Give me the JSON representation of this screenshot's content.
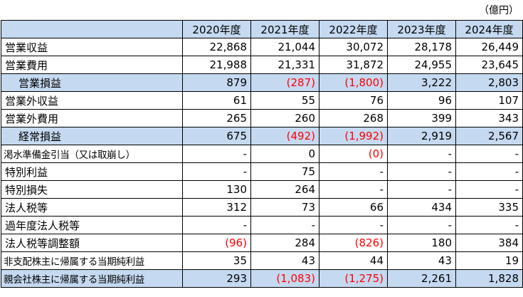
{
  "unit_label": "（億円）",
  "years": [
    "2020年度",
    "2021年度",
    "2022年度",
    "2023年度",
    "2024年度"
  ],
  "rows": [
    {
      "label": "営業収益",
      "values": [
        "22,868",
        "21,044",
        "30,072",
        "28,178",
        "26,449"
      ],
      "neg": [
        false,
        false,
        false,
        false,
        false
      ]
    },
    {
      "label": "営業費用",
      "values": [
        "21,988",
        "21,331",
        "31,872",
        "24,955",
        "23,645"
      ],
      "neg": [
        false,
        false,
        false,
        false,
        false
      ]
    },
    {
      "label": "営業損益",
      "values": [
        "879",
        "(287)",
        "(1,800)",
        "3,222",
        "2,803"
      ],
      "neg": [
        false,
        true,
        true,
        false,
        false
      ]
    },
    {
      "label": "営業外収益",
      "values": [
        "61",
        "55",
        "76",
        "96",
        "107"
      ],
      "neg": [
        false,
        false,
        false,
        false,
        false
      ]
    },
    {
      "label": "営業外費用",
      "values": [
        "265",
        "260",
        "268",
        "399",
        "343"
      ],
      "neg": [
        false,
        false,
        false,
        false,
        false
      ]
    },
    {
      "label": "経常損益",
      "values": [
        "675",
        "(492)",
        "(1,992)",
        "2,919",
        "2,567"
      ],
      "neg": [
        false,
        true,
        true,
        false,
        false
      ]
    },
    {
      "label": "渇水準備金引当（又は取崩し）",
      "values": [
        "-",
        "0",
        "(0)",
        "-",
        "-"
      ],
      "neg": [
        false,
        false,
        true,
        false,
        false
      ]
    },
    {
      "label": "特別利益",
      "values": [
        "-",
        "75",
        "-",
        "-",
        "-"
      ],
      "neg": [
        false,
        false,
        false,
        false,
        false
      ]
    },
    {
      "label": "特別損失",
      "values": [
        "130",
        "264",
        "-",
        "-",
        "-"
      ],
      "neg": [
        false,
        false,
        false,
        false,
        false
      ]
    },
    {
      "label": "法人税等",
      "values": [
        "312",
        "73",
        "66",
        "434",
        "335"
      ],
      "neg": [
        false,
        false,
        false,
        false,
        false
      ]
    },
    {
      "label": "過年度法人税等",
      "values": [
        "-",
        "-",
        "-",
        "-",
        "-"
      ],
      "neg": [
        false,
        false,
        false,
        false,
        false
      ]
    },
    {
      "label": "法人税等調整額",
      "values": [
        "(96)",
        "284",
        "(826)",
        "180",
        "384"
      ],
      "neg": [
        true,
        false,
        true,
        false,
        false
      ]
    },
    {
      "label": "非支配株主に帰属する当期純利益",
      "values": [
        "35",
        "43",
        "44",
        "43",
        "19"
      ],
      "neg": [
        false,
        false,
        false,
        false,
        false
      ]
    },
    {
      "label": "親会社株主に帰属する当期純利益",
      "values": [
        "293",
        "(1,083)",
        "(1,275)",
        "2,261",
        "1,828"
      ],
      "neg": [
        false,
        true,
        true,
        false,
        false
      ]
    }
  ]
}
